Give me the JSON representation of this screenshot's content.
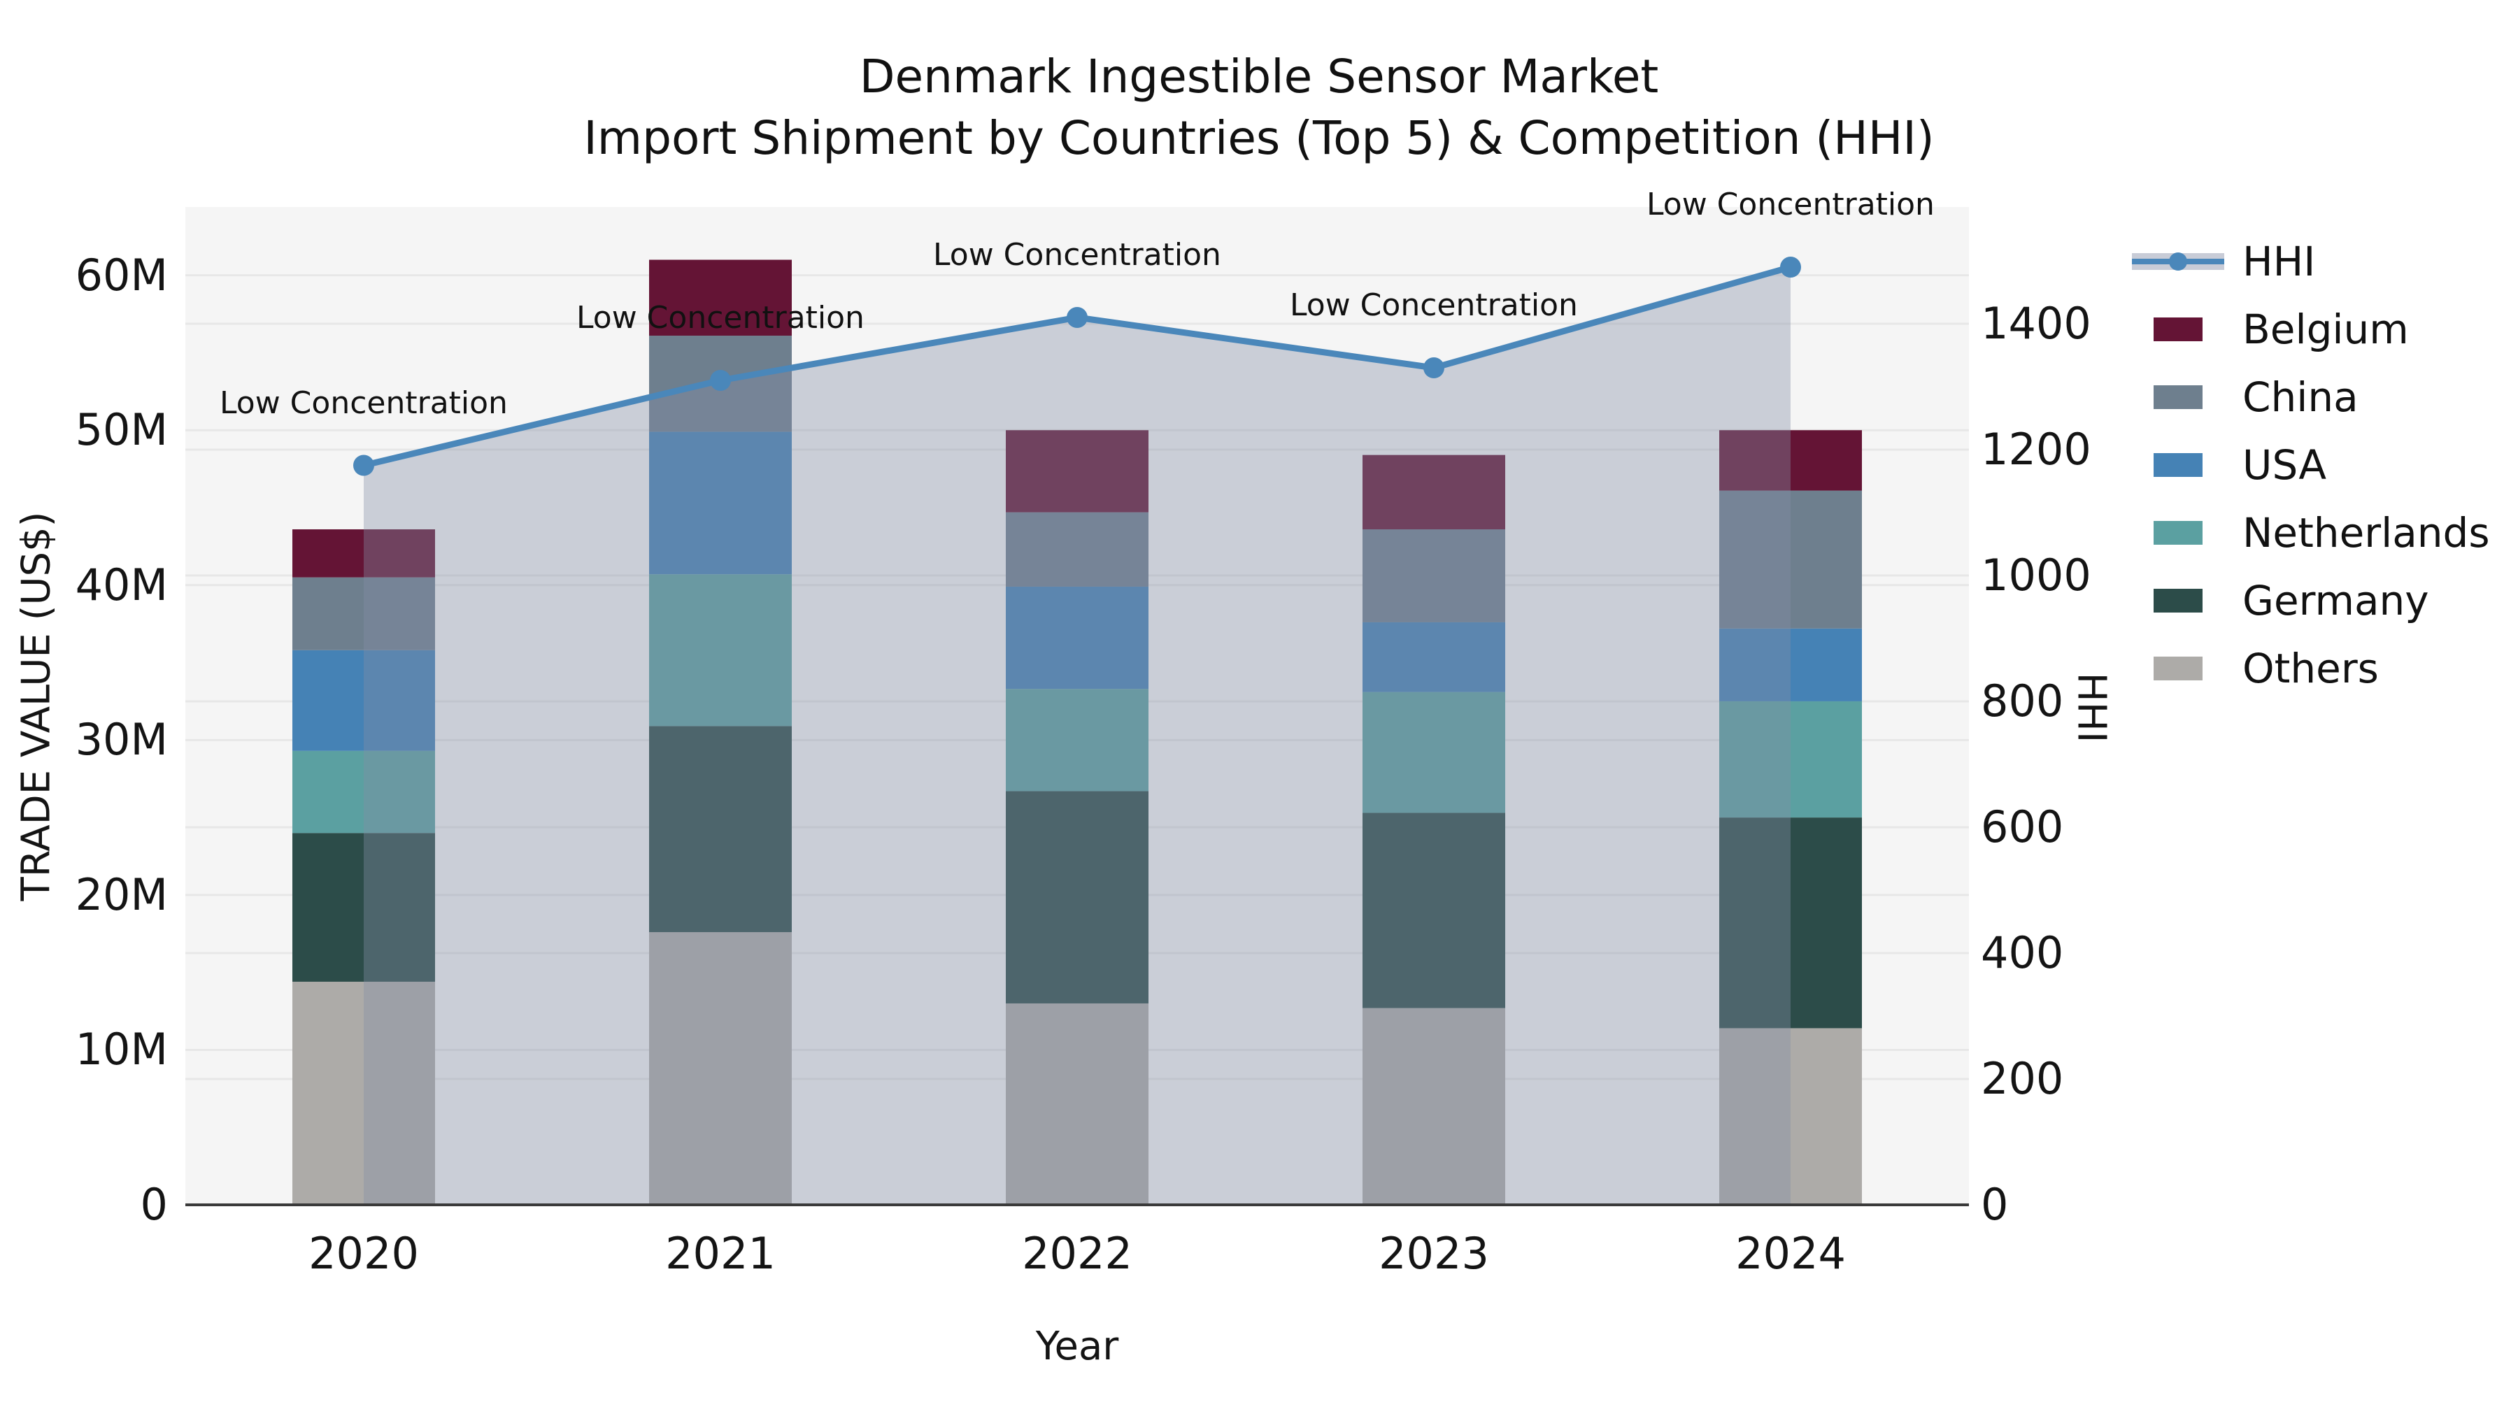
{
  "title": {
    "line1": "Denmark Ingestible Sensor Market",
    "line2": "Import Shipment by Countries (Top 5) & Competition (HHI)"
  },
  "axes": {
    "left_label": "TRADE VALUE (US$)",
    "right_label": "HHI",
    "x_label": "Year",
    "left_ticks": [
      "0",
      "10M",
      "20M",
      "30M",
      "40M",
      "50M",
      "60M"
    ],
    "left_tick_values": [
      0,
      10,
      20,
      30,
      40,
      50,
      60
    ],
    "right_ticks": [
      "0",
      "200",
      "400",
      "600",
      "800",
      "1000",
      "1200",
      "1400"
    ],
    "right_tick_values": [
      0,
      200,
      400,
      600,
      800,
      1000,
      1200,
      1400
    ],
    "x_ticks": [
      "2020",
      "2021",
      "2022",
      "2023",
      "2024"
    ]
  },
  "legend": {
    "items": [
      {
        "label": "HHI",
        "type": "line",
        "color": "#4a87ba"
      },
      {
        "label": "Belgium",
        "type": "swatch",
        "color": "#641435"
      },
      {
        "label": "China",
        "type": "swatch",
        "color": "#6e7f8e"
      },
      {
        "label": "USA",
        "type": "swatch",
        "color": "#4582b5"
      },
      {
        "label": "Netherlands",
        "type": "swatch",
        "color": "#5ba0a1"
      },
      {
        "label": "Germany",
        "type": "swatch",
        "color": "#2c4c49"
      },
      {
        "label": "Others",
        "type": "swatch",
        "color": "#adaba8"
      }
    ]
  },
  "colors": {
    "plot_background": "#f5f5f5",
    "gridline": "#e7e7e7",
    "axis_spine": "#3a3a3a",
    "hhi_line": "#4a87ba",
    "hhi_fill": "#848ea6",
    "text": "#111111"
  },
  "chart_data": {
    "type": "bar",
    "subtype": "stacked-bars-with-line-area-dual-axis",
    "title": "Denmark Ingestible Sensor Market — Import Shipment by Countries (Top 5) & Competition (HHI)",
    "xlabel": "Year",
    "ylabel_left": "TRADE VALUE (US$), millions",
    "ylabel_right": "HHI",
    "ylim_left": [
      0,
      64.4
    ],
    "ylim_right": [
      0,
      1586
    ],
    "grid": true,
    "legend_position": "right",
    "categories": [
      "2020",
      "2021",
      "2022",
      "2023",
      "2024"
    ],
    "stack_bottom_to_top": [
      "Others",
      "Germany",
      "Netherlands",
      "USA",
      "China",
      "Belgium"
    ],
    "series": [
      {
        "name": "Belgium",
        "color": "#641435",
        "values": [
          3.1,
          4.9,
          5.3,
          4.8,
          3.9
        ]
      },
      {
        "name": "China",
        "color": "#6e7f8e",
        "values": [
          4.7,
          6.2,
          4.8,
          6.0,
          8.9
        ]
      },
      {
        "name": "USA",
        "color": "#4582b5",
        "values": [
          6.5,
          9.2,
          6.6,
          4.5,
          4.7
        ]
      },
      {
        "name": "Netherlands",
        "color": "#5ba0a1",
        "values": [
          5.3,
          9.8,
          6.6,
          7.8,
          7.5
        ]
      },
      {
        "name": "Germany",
        "color": "#2c4c49",
        "values": [
          9.6,
          13.3,
          13.7,
          12.6,
          13.6
        ]
      },
      {
        "name": "Others",
        "color": "#adaba8",
        "values": [
          14.4,
          17.6,
          13.0,
          12.7,
          11.4
        ]
      }
    ],
    "bar_totals": [
      43.6,
      61.0,
      50.0,
      48.4,
      50.0
    ],
    "line": {
      "name": "HHI",
      "color": "#4a87ba",
      "fill_color": "#848ea6",
      "fill_opacity": 0.38,
      "values": [
        1175,
        1310,
        1410,
        1330,
        1490
      ]
    },
    "annotations": [
      "Low Concentration",
      "Low Concentration",
      "Low Concentration",
      "Low Concentration",
      "Low Concentration"
    ]
  }
}
